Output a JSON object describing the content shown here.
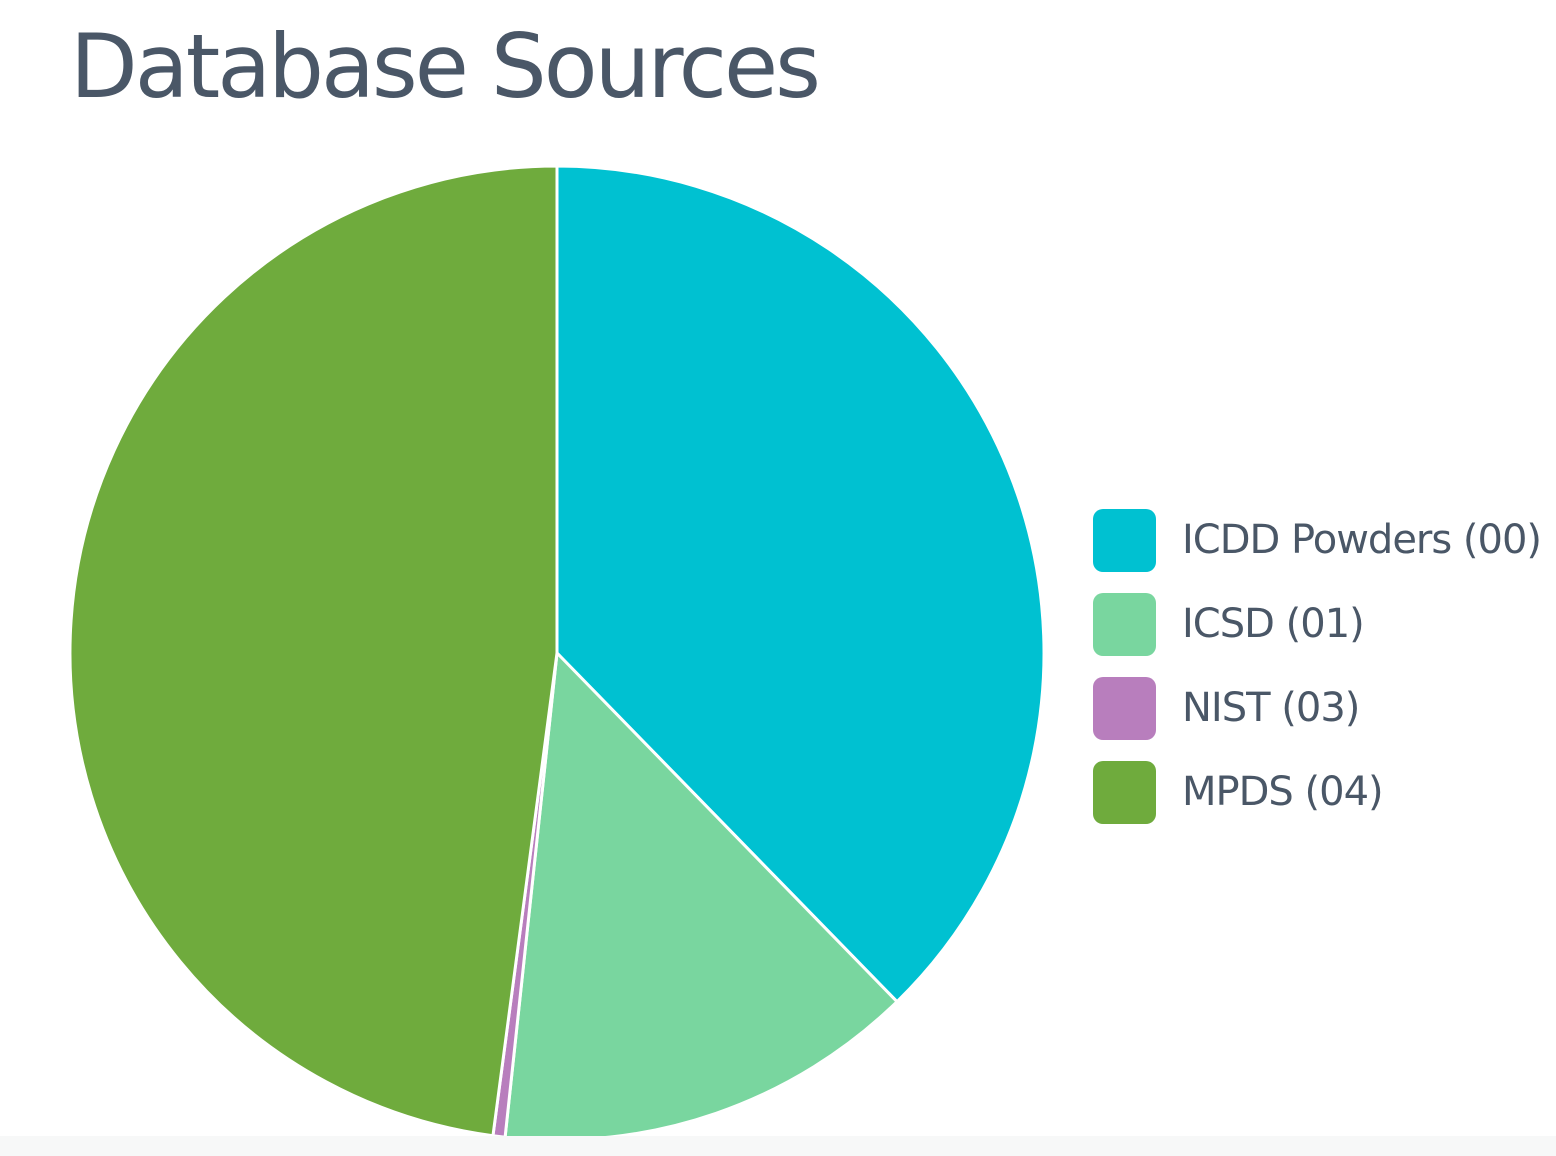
{
  "page": {
    "title": "Database Sources"
  },
  "chart_data": {
    "type": "pie",
    "title": "Database Sources",
    "start_angle_deg": 0,
    "direction": "clockwise",
    "legend_position": "right",
    "slices": [
      {
        "label": "ICDD Powders (00)",
        "value": 37.7,
        "color": "#00c1d1"
      },
      {
        "label": "ICSD (01)",
        "value": 14.0,
        "color": "#79d69f"
      },
      {
        "label": "NIST (03)",
        "value": 0.4,
        "color": "#b87ebd"
      },
      {
        "label": "MPDS (04)",
        "value": 47.9,
        "color": "#6fab3d"
      }
    ],
    "slice_border_color": "#ffffff"
  }
}
